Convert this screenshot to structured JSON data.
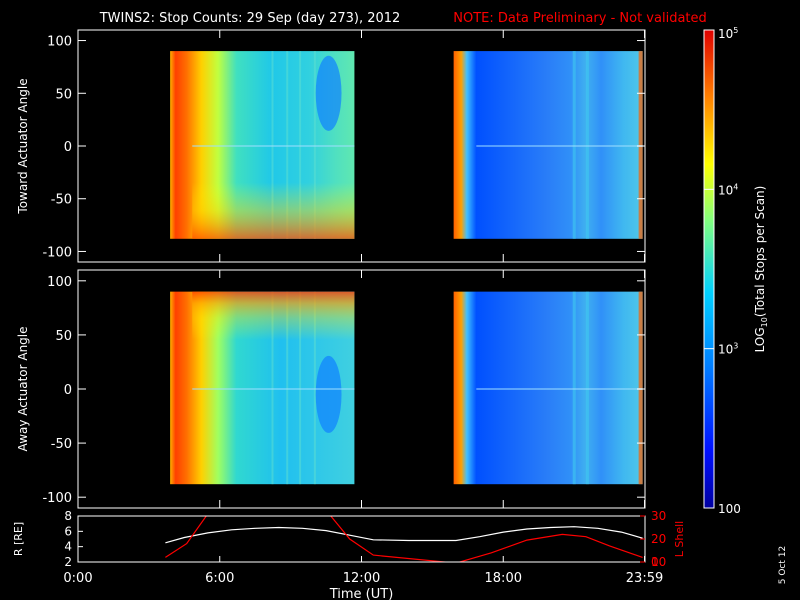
{
  "header": {
    "title": "TWINS2: Stop Counts: 29 Sep (day 273), 2012",
    "note": "NOTE: Data Preliminary - Not validated"
  },
  "stamp": "5 Oct 12",
  "colors": {
    "background": "#000000",
    "axes": "#ffffff",
    "note": "#ff0000",
    "r_line": "#ffffff",
    "lshell_line": "#ff0000"
  },
  "chart_data": [
    {
      "type": "heatmap",
      "name": "toward",
      "ylabel": "Toward Actuator Angle",
      "ylim": [
        -110,
        110
      ],
      "yticks": [
        100,
        50,
        0,
        -50,
        -100
      ],
      "xlim": [
        0,
        24
      ],
      "grid": false,
      "colorscale": "log10 counts, 100 to 1e5 (rainbow)",
      "data_coverage_hours": [
        [
          3.9,
          11.7
        ],
        [
          15.9,
          23.9
        ]
      ],
      "angle_coverage": [
        -88,
        90
      ]
    },
    {
      "type": "heatmap",
      "name": "away",
      "ylabel": "Away Actuator Angle",
      "ylim": [
        -110,
        110
      ],
      "yticks": [
        100,
        50,
        0,
        -50,
        -100
      ],
      "xlim": [
        0,
        24
      ],
      "grid": false,
      "colorscale": "log10 counts, 100 to 1e5 (rainbow)",
      "data_coverage_hours": [
        [
          3.9,
          11.7
        ],
        [
          15.9,
          23.9
        ]
      ],
      "angle_coverage": [
        -88,
        90
      ]
    },
    {
      "type": "line",
      "name": "orbit",
      "xlabel": "Time (UT)",
      "xticks": [
        "0:00",
        "6:00",
        "12:00",
        "18:00",
        "23:59"
      ],
      "xtick_values": [
        0,
        6,
        12,
        18,
        23.98
      ],
      "xlim": [
        0,
        24
      ],
      "ylabel_left": "R [RE]",
      "ylim_left": [
        2,
        8
      ],
      "yticks_left": [
        8,
        6,
        4,
        2
      ],
      "ylabel_right": "L Shell",
      "ylim_right": [
        10,
        30
      ],
      "yticks_right": [
        30,
        20,
        10,
        0
      ],
      "series": [
        {
          "name": "R [RE]",
          "axis": "left",
          "color": "#ffffff",
          "x": [
            3.7,
            4.5,
            5.5,
            6.5,
            7.5,
            8.5,
            9.5,
            10.5,
            11.5,
            12.5,
            14,
            16,
            17,
            18,
            19,
            20,
            21,
            22,
            23,
            23.9
          ],
          "y": [
            4.5,
            5.2,
            5.8,
            6.2,
            6.4,
            6.5,
            6.4,
            6.1,
            5.5,
            4.9,
            4.8,
            4.8,
            5.3,
            5.9,
            6.3,
            6.5,
            6.6,
            6.4,
            5.9,
            5.1
          ]
        },
        {
          "name": "L Shell",
          "axis": "right",
          "color": "#ff0000",
          "x": [
            3.7,
            4.6,
            5.5,
            10.2,
            10.7,
            11.5,
            12.5,
            16,
            17.5,
            19,
            20.5,
            21.5,
            22.5,
            23.9
          ],
          "y": [
            12,
            18,
            31,
            31,
            30,
            20,
            13,
            9.5,
            14,
            19.5,
            22,
            21,
            17,
            12
          ]
        }
      ]
    }
  ],
  "colorbar": {
    "label": "LOG10(Total Stops per Scan)",
    "label_main": "LOG",
    "label_sub": "10",
    "label_rest": "(Total Stops per Scan)",
    "ticks": [
      {
        "value": 100000,
        "base": "10",
        "exp": "5"
      },
      {
        "value": 10000,
        "base": "10",
        "exp": "4"
      },
      {
        "value": 1000,
        "base": "10",
        "exp": "3"
      },
      {
        "value": 100,
        "base": "100",
        "exp": ""
      }
    ],
    "range": [
      100,
      100000
    ]
  }
}
